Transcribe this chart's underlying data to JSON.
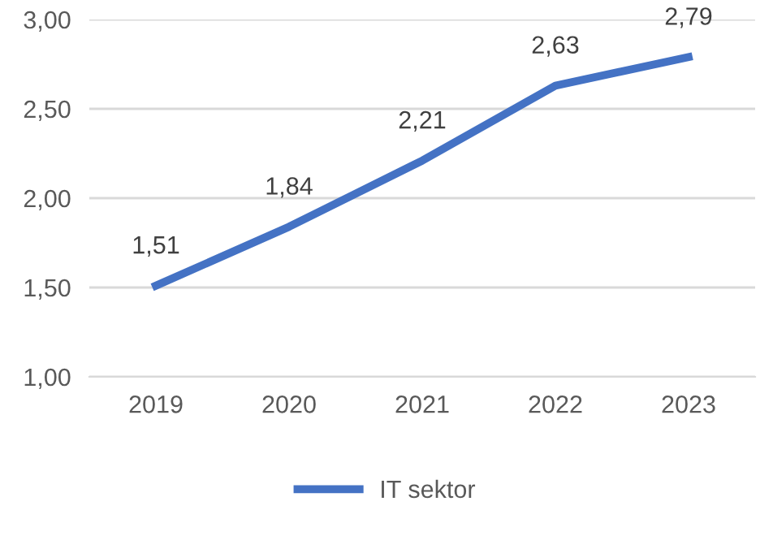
{
  "chart_data": {
    "type": "line",
    "categories": [
      "2019",
      "2020",
      "2021",
      "2022",
      "2023"
    ],
    "series": [
      {
        "name": "IT sektor",
        "color": "#4472c4",
        "values": [
          1.51,
          1.84,
          2.21,
          2.63,
          2.79
        ],
        "value_labels": [
          "1,51",
          "1,84",
          "2,21",
          "2,63",
          "2,79"
        ]
      }
    ],
    "ylim": [
      1.0,
      3.0
    ],
    "yticks": [
      {
        "value": 1.0,
        "label": "1,00"
      },
      {
        "value": 1.5,
        "label": "1,50"
      },
      {
        "value": 2.0,
        "label": "2,00"
      },
      {
        "value": 2.5,
        "label": "2,50"
      },
      {
        "value": 3.0,
        "label": "3,00"
      }
    ],
    "grid": "y",
    "legend": "bottom",
    "marker": "none",
    "line_style": "solid"
  }
}
